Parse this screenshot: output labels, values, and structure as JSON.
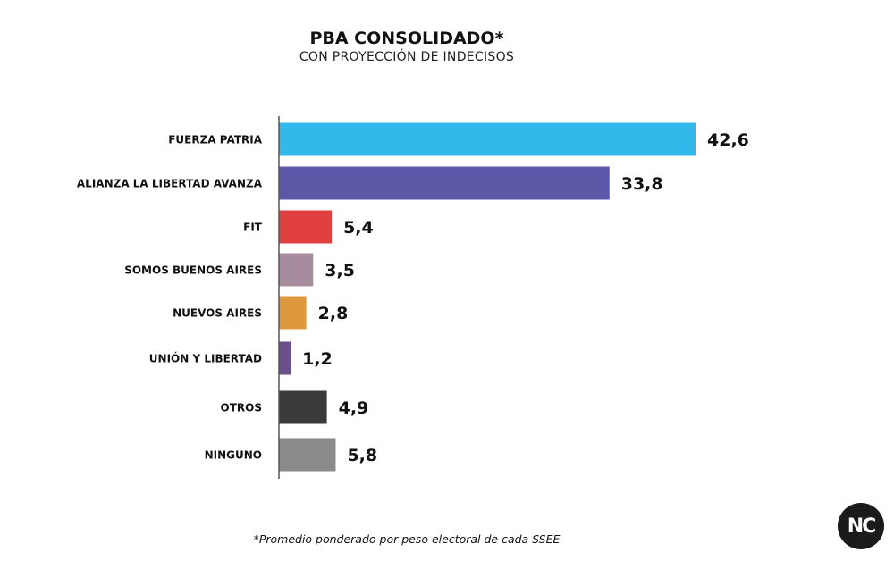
{
  "chart_data": {
    "type": "bar",
    "orientation": "horizontal",
    "title": "PBA CONSOLIDADO*",
    "subtitle": "CON PROYECCIÓN DE INDECISOS",
    "categories": [
      "FUERZA PATRIA",
      "ALIANZA LA LIBERTAD AVANZA",
      "FIT",
      "SOMOS BUENOS AIRES",
      "NUEVOS AIRES",
      "UNIÓN Y LIBERTAD",
      "OTROS",
      "NINGUNO"
    ],
    "values": [
      42.6,
      33.8,
      5.4,
      3.5,
      2.8,
      1.2,
      4.9,
      5.8
    ],
    "value_labels": [
      "42,6",
      "33,8",
      "5,4",
      "3,5",
      "2,8",
      "1,2",
      "4,9",
      "5,8"
    ],
    "colors": [
      "#33b8ec",
      "#5c58a8",
      "#e04040",
      "#a78c9e",
      "#e0983c",
      "#6a4f8c",
      "#3a3a3a",
      "#8a8a8a"
    ],
    "xlim": [
      0,
      42.6
    ],
    "grid": false,
    "legend": "none",
    "footnote": "*Promedio ponderado por peso electoral de cada SSEE"
  },
  "logo": {
    "text": "NC"
  }
}
